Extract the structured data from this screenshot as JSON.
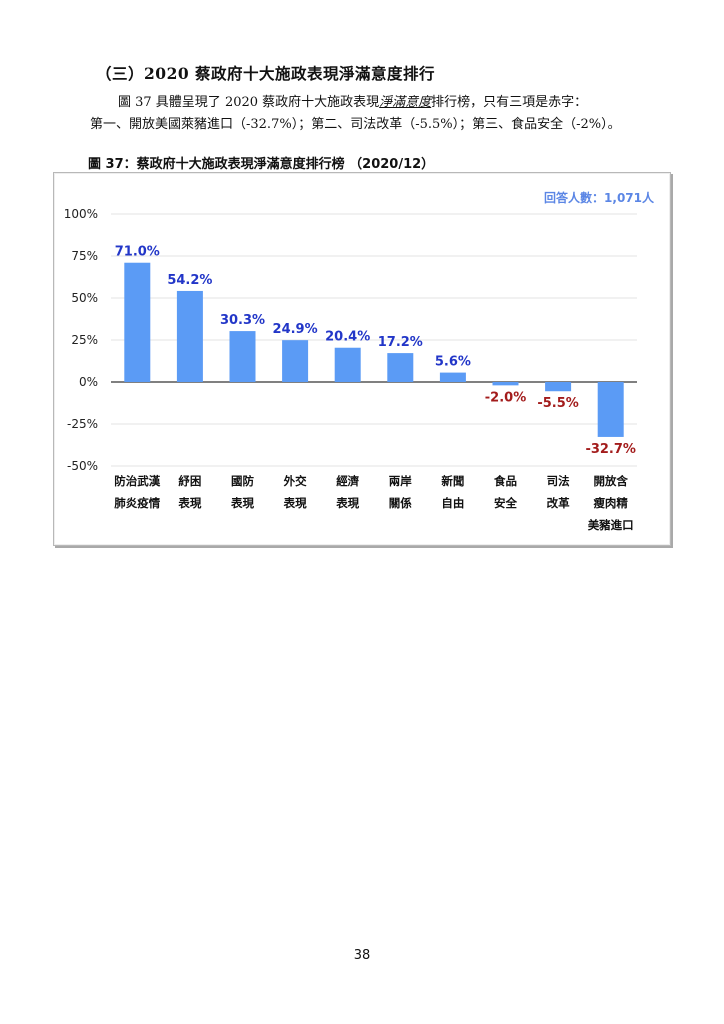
{
  "section": {
    "heading": "（三）2020 蔡政府十大施政表現淨滿意度排行",
    "para_line1_a": "圖 37 具體呈現了 2020 蔡政府十大施政表現",
    "para_line1_ul": "淨滿意度",
    "para_line1_b": "排行榜，只有三項是赤字：",
    "para_line2": "第一、開放美國萊豬進口（-32.7%）；第二、司法改革（-5.5%）；第三、食品安全（-2%）。"
  },
  "figure": {
    "caption": "圖 37：蔡政府十大施政表現淨滿意度排行榜 （2020/12）",
    "respondents": "回答人數：1,071人"
  },
  "colors": {
    "bar": "#5b9bf5",
    "positive_label": "#2236c8",
    "negative_label": "#a31c1c",
    "grid": "#e3e3e3",
    "axis": "#000000",
    "respondents": "#5b86e5"
  },
  "chart_data": {
    "type": "bar",
    "title": "",
    "xlabel": "",
    "ylabel": "",
    "ylim": [
      -50,
      100
    ],
    "yticks": [
      100,
      75,
      50,
      25,
      0,
      -25,
      -50
    ],
    "ytick_labels": [
      "100%",
      "75%",
      "50%",
      "25%",
      "0%",
      "-25%",
      "-50%"
    ],
    "grid": true,
    "categories": [
      [
        "防治武漢",
        "肺炎疫情"
      ],
      [
        "紓困",
        "表現"
      ],
      [
        "國防",
        "表現"
      ],
      [
        "外交",
        "表現"
      ],
      [
        "經濟",
        "表現"
      ],
      [
        "兩岸",
        "關係"
      ],
      [
        "新聞",
        "自由"
      ],
      [
        "食品",
        "安全"
      ],
      [
        "司法",
        "改革"
      ],
      [
        "開放含",
        "瘦肉精",
        "美豬進口"
      ]
    ],
    "values": [
      71.0,
      54.2,
      30.3,
      24.9,
      20.4,
      17.2,
      5.6,
      -2.0,
      -5.5,
      -32.7
    ],
    "value_labels": [
      "71.0%",
      "54.2%",
      "30.3%",
      "24.9%",
      "20.4%",
      "17.2%",
      "5.6%",
      "-2.0%",
      "-5.5%",
      "-32.7%"
    ]
  },
  "page": {
    "number": "38"
  }
}
